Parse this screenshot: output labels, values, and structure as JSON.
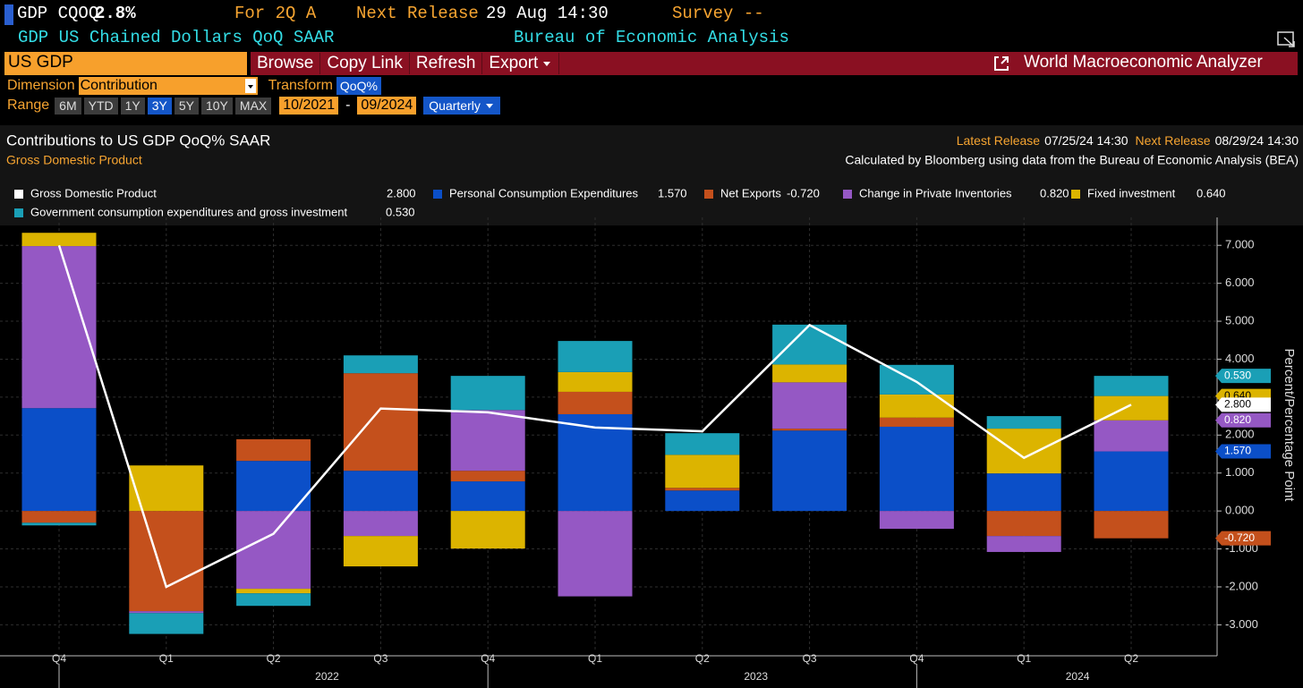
{
  "header": {
    "ticker": "GDP CQOQ",
    "value": "2.8%",
    "period": "For 2Q A",
    "next_release_label": "Next Release",
    "next_release": "29 Aug 14:30",
    "survey": "Survey --",
    "description": "GDP US Chained Dollars QoQ SAAR",
    "source": "Bureau of Economic Analysis"
  },
  "toolbar": {
    "security": "US GDP",
    "buttons": [
      "Browse",
      "Copy Link",
      "Refresh",
      "Export"
    ],
    "app": "World Macroeconomic Analyzer"
  },
  "controls": {
    "dimension_label": "Dimension",
    "dimension": "Contribution",
    "transform_label": "Transform",
    "transform": "QoQ%",
    "range_label": "Range",
    "ranges": [
      "6M",
      "YTD",
      "1Y",
      "3Y",
      "5Y",
      "10Y",
      "MAX"
    ],
    "active_range": "3Y",
    "start": "10/2021",
    "separator": "-",
    "end": "09/2024",
    "frequency": "Quarterly"
  },
  "chart_data": {
    "type": "stacked_bar",
    "title": "Contributions to US GDP QoQ% SAAR",
    "subtitle": "Gross Domestic Product",
    "latest_release_label": "Latest Release",
    "latest_release": "07/25/24 14:30",
    "next_release_label": "Next Release",
    "next_release": "08/29/24 14:30",
    "source_note": "Calculated by Bloomberg using data from the Bureau of Economic Analysis (BEA)",
    "y_label": "Percent/Percentage Point",
    "categories": [
      "Q4",
      "Q1",
      "Q2",
      "Q3",
      "Q4",
      "Q1",
      "Q2",
      "Q3",
      "Q4",
      "Q1",
      "Q2"
    ],
    "years": [
      "2022",
      "2023",
      "2024"
    ],
    "ylim": [
      -3.58,
      7.5
    ],
    "yticks": [
      {
        "value": -3,
        "label": "-3.000"
      },
      {
        "value": -2,
        "label": "-2.000"
      },
      {
        "value": -1,
        "label": "-1.000"
      },
      {
        "value": 0,
        "label": "0.000"
      },
      {
        "value": 1,
        "label": "1.000"
      },
      {
        "value": 2,
        "label": "2.000"
      },
      {
        "value": 3,
        "label": "3.000"
      },
      {
        "value": 4,
        "label": "4.000"
      },
      {
        "value": 5,
        "label": "5.000"
      },
      {
        "value": 6,
        "label": "6.000"
      },
      {
        "value": 7,
        "label": "7.000"
      }
    ],
    "grid": true,
    "series": [
      {
        "name": "Gross Domestic Product",
        "kind": "line",
        "color": "#ffffff",
        "values": [
          7.0,
          -2.0,
          -0.6,
          2.7,
          2.6,
          2.2,
          2.1,
          4.9,
          3.4,
          1.4,
          2.8
        ],
        "value_labels": [
          null,
          null,
          null,
          null,
          null,
          null,
          null,
          null,
          null,
          null,
          "2.800"
        ]
      },
      {
        "name": "Personal Consumption Expenditures",
        "kind": "bar",
        "color": "#0b4fc8",
        "values": [
          2.71,
          0,
          1.32,
          1.06,
          0.78,
          2.55,
          0.54,
          2.12,
          2.22,
          0.99,
          1.57
        ],
        "value_labels": [
          null,
          null,
          null,
          null,
          null,
          null,
          null,
          null,
          null,
          null,
          "1.570"
        ]
      },
      {
        "name": "Net Exports",
        "kind": "bar",
        "color": "#c4501c",
        "values": [
          -0.31,
          -2.64,
          0.57,
          2.57,
          0.28,
          0.59,
          0.07,
          0.05,
          0.24,
          -0.66,
          -0.72
        ],
        "value_labels": [
          null,
          null,
          null,
          null,
          null,
          null,
          null,
          null,
          null,
          null,
          "-0.720"
        ]
      },
      {
        "name": "Change in Private Inventories",
        "kind": "bar",
        "color": "#9558c4",
        "values": [
          4.27,
          -0.05,
          -2.05,
          -0.66,
          1.6,
          -2.25,
          0,
          1.22,
          -0.47,
          -0.42,
          0.82
        ],
        "value_labels": [
          null,
          null,
          null,
          null,
          null,
          null,
          null,
          null,
          null,
          null,
          "0.820"
        ]
      },
      {
        "name": "Fixed investment",
        "kind": "bar",
        "color": "#dcb400",
        "values": [
          0.35,
          1.2,
          -0.12,
          -0.8,
          -0.99,
          0.52,
          0.87,
          0.47,
          0.61,
          1.18,
          0.64
        ],
        "value_labels": [
          null,
          null,
          null,
          null,
          null,
          null,
          null,
          null,
          null,
          null,
          "0.640"
        ]
      },
      {
        "name": "Government consumption expenditures and gross investment",
        "kind": "bar",
        "color": "#1a9fb6",
        "values": [
          -0.07,
          -0.55,
          -0.33,
          0.47,
          0.9,
          0.82,
          0.57,
          1.05,
          0.78,
          0.33,
          0.53
        ],
        "value_labels": [
          null,
          null,
          null,
          null,
          null,
          null,
          null,
          null,
          null,
          null,
          "0.530"
        ]
      }
    ]
  }
}
